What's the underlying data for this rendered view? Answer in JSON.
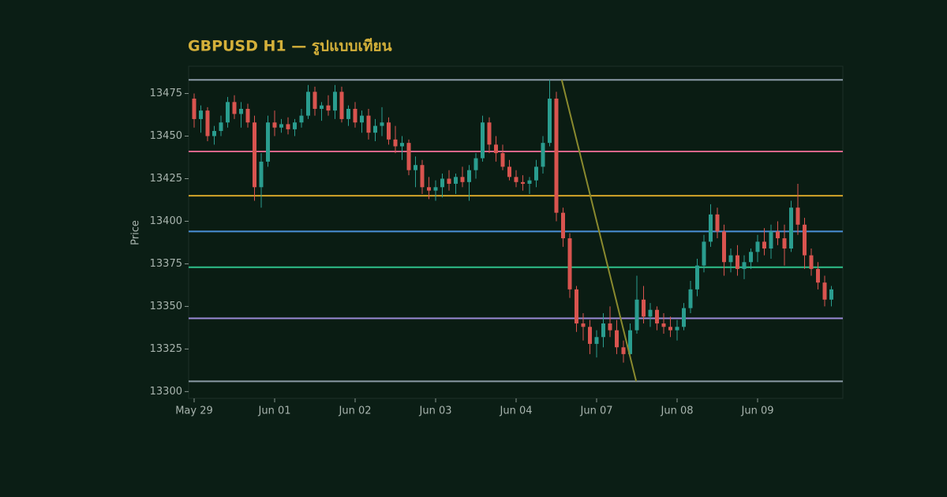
{
  "chart_data": {
    "type": "candlestick",
    "title": "GBPUSD H1 — รูปแบบเทียน",
    "ylabel": "Price",
    "categories": [
      "May 29",
      null,
      null,
      null,
      null,
      null,
      null,
      null,
      null,
      null,
      null,
      null,
      "Jun 01",
      null,
      null,
      null,
      null,
      null,
      null,
      null,
      null,
      null,
      null,
      null,
      "Jun 02",
      null,
      null,
      null,
      null,
      null,
      null,
      null,
      null,
      null,
      null,
      null,
      "Jun 03",
      null,
      null,
      null,
      null,
      null,
      null,
      null,
      null,
      null,
      null,
      null,
      "Jun 04",
      null,
      null,
      null,
      null,
      null,
      null,
      null,
      null,
      null,
      null,
      null,
      "Jun 07",
      null,
      null,
      null,
      null,
      null,
      null,
      null,
      null,
      null,
      null,
      null,
      "Jun 08",
      null,
      null,
      null,
      null,
      null,
      null,
      null,
      null,
      null,
      null,
      null,
      "Jun 09",
      null,
      null,
      null,
      null,
      null,
      null,
      null,
      null,
      null,
      null,
      null
    ],
    "open": [
      13472,
      13460,
      13465,
      13450,
      13453,
      13458,
      13470,
      13463,
      13466,
      13458,
      13420,
      13435,
      13458,
      13455,
      13457,
      13454,
      13458,
      13462,
      13476,
      13466,
      13468,
      13465,
      13476,
      13460,
      13466,
      13458,
      13462,
      13452,
      13456,
      13458,
      13448,
      13444,
      13446,
      13430,
      13433,
      13420,
      13418,
      13420,
      13425,
      13422,
      13426,
      13423,
      13430,
      13437,
      13458,
      13445,
      13440,
      13432,
      13426,
      13423,
      13422,
      13424,
      13432,
      13446,
      13472,
      13405,
      13390,
      13360,
      13340,
      13338,
      13328,
      13332,
      13340,
      13336,
      13326,
      13322,
      13336,
      13354,
      13344,
      13348,
      13340,
      13338,
      13336,
      13338,
      13349,
      13360,
      13374,
      13388,
      13404,
      13394,
      13376,
      13380,
      13372,
      13376,
      13382,
      13388,
      13384,
      13394,
      13390,
      13384,
      13408,
      13398,
      13380,
      13372,
      13364,
      13354
    ],
    "high": [
      13475,
      13468,
      13467,
      13456,
      13462,
      13473,
      13474,
      13470,
      13469,
      13462,
      13440,
      13462,
      13465,
      13460,
      13461,
      13460,
      13466,
      13480,
      13479,
      13470,
      13474,
      13480,
      13479,
      13468,
      13470,
      13465,
      13466,
      13460,
      13467,
      13461,
      13456,
      13450,
      13448,
      13438,
      13436,
      13426,
      13424,
      13428,
      13430,
      13428,
      13432,
      13433,
      13440,
      13462,
      13461,
      13450,
      13445,
      13436,
      13430,
      13427,
      13426,
      13436,
      13450,
      13483,
      13476,
      13408,
      13393,
      13362,
      13346,
      13342,
      13336,
      13346,
      13350,
      13342,
      13330,
      13340,
      13368,
      13362,
      13352,
      13350,
      13346,
      13344,
      13342,
      13352,
      13365,
      13378,
      13392,
      13410,
      13408,
      13398,
      13384,
      13386,
      13380,
      13384,
      13392,
      13396,
      13398,
      13400,
      13398,
      13412,
      13422,
      13402,
      13384,
      13376,
      13368,
      13362
    ],
    "low": [
      13455,
      13452,
      13447,
      13445,
      13450,
      13455,
      13460,
      13455,
      13455,
      13412,
      13408,
      13432,
      13450,
      13452,
      13451,
      13450,
      13455,
      13460,
      13462,
      13459,
      13462,
      13460,
      13458,
      13456,
      13455,
      13452,
      13448,
      13447,
      13450,
      13445,
      13440,
      13436,
      13427,
      13420,
      13416,
      13413,
      13412,
      13414,
      13418,
      13416,
      13420,
      13412,
      13425,
      13435,
      13440,
      13435,
      13430,
      13424,
      13420,
      13418,
      13416,
      13420,
      13428,
      13444,
      13400,
      13385,
      13355,
      13335,
      13330,
      13322,
      13320,
      13326,
      13332,
      13322,
      13317,
      13320,
      13334,
      13340,
      13338,
      13336,
      13334,
      13332,
      13330,
      13336,
      13346,
      13356,
      13370,
      13385,
      13390,
      13368,
      13370,
      13368,
      13366,
      13372,
      13376,
      13380,
      13378,
      13386,
      13374,
      13382,
      13392,
      13372,
      13368,
      13360,
      13350,
      13350
    ],
    "close": [
      13460,
      13465,
      13450,
      13453,
      13458,
      13470,
      13463,
      13466,
      13458,
      13420,
      13435,
      13458,
      13455,
      13457,
      13454,
      13458,
      13462,
      13476,
      13466,
      13468,
      13465,
      13476,
      13460,
      13466,
      13458,
      13462,
      13452,
      13456,
      13458,
      13448,
      13444,
      13446,
      13430,
      13433,
      13420,
      13418,
      13420,
      13425,
      13422,
      13426,
      13423,
      13430,
      13437,
      13458,
      13445,
      13440,
      13432,
      13426,
      13423,
      13422,
      13424,
      13432,
      13446,
      13472,
      13405,
      13390,
      13360,
      13340,
      13338,
      13328,
      13332,
      13340,
      13336,
      13326,
      13322,
      13336,
      13354,
      13344,
      13348,
      13340,
      13338,
      13336,
      13338,
      13349,
      13360,
      13374,
      13388,
      13404,
      13394,
      13376,
      13380,
      13372,
      13376,
      13382,
      13388,
      13384,
      13394,
      13390,
      13384,
      13408,
      13398,
      13380,
      13372,
      13364,
      13354,
      13360
    ],
    "up_color": "#2a9d8f",
    "down_color": "#d9544f",
    "ylim": [
      13296,
      13491
    ],
    "yticks": [
      13300,
      13325,
      13350,
      13375,
      13400,
      13425,
      13450,
      13475
    ],
    "levels": [
      {
        "value": 13483,
        "color": "#8a9aa6"
      },
      {
        "value": 13441,
        "color": "#d9668a"
      },
      {
        "value": 13415,
        "color": "#d4a52a"
      },
      {
        "value": 13394,
        "color": "#4a90d9"
      },
      {
        "value": 13373,
        "color": "#2fbf8a"
      },
      {
        "value": 13343,
        "color": "#9a8ad6"
      },
      {
        "value": 13306,
        "color": "#8a9aa6"
      }
    ],
    "trendline": {
      "x": [
        54.8,
        65.9
      ],
      "y": [
        13483,
        13306
      ],
      "color": "#8a8a2e"
    }
  }
}
